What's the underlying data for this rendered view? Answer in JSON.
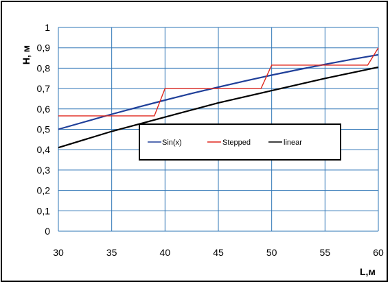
{
  "chart_data": {
    "type": "line",
    "xlabel": "L,м",
    "ylabel": "H, м",
    "xlim": [
      30,
      60
    ],
    "ylim": [
      0,
      1
    ],
    "xticks": [
      30,
      35,
      40,
      45,
      50,
      55,
      60
    ],
    "yticks": [
      "0",
      "0,1",
      "0,2",
      "0,3",
      "0,4",
      "0,5",
      "0,6",
      "0,7",
      "0,8",
      "0,9",
      "1"
    ],
    "grid": true,
    "legend_position": "center",
    "series": [
      {
        "name": "Sin(x)",
        "color": "#1f3f99",
        "x": [
          30,
          32.5,
          35,
          37.5,
          40,
          42.5,
          45,
          47.5,
          50,
          52.5,
          55,
          57.5,
          60
        ],
        "y": [
          0.5,
          0.537,
          0.574,
          0.609,
          0.643,
          0.676,
          0.707,
          0.737,
          0.766,
          0.793,
          0.819,
          0.843,
          0.866
        ]
      },
      {
        "name": "Stepped",
        "color": "#e0281e",
        "x": [
          30,
          39,
          40,
          49,
          50,
          59,
          60
        ],
        "y": [
          0.566,
          0.566,
          0.7,
          0.7,
          0.815,
          0.815,
          0.9
        ]
      },
      {
        "name": "linear",
        "color": "#000000",
        "x": [
          30,
          35,
          40,
          45,
          50,
          55,
          60
        ],
        "y": [
          0.41,
          0.49,
          0.56,
          0.63,
          0.69,
          0.75,
          0.805
        ]
      }
    ]
  }
}
